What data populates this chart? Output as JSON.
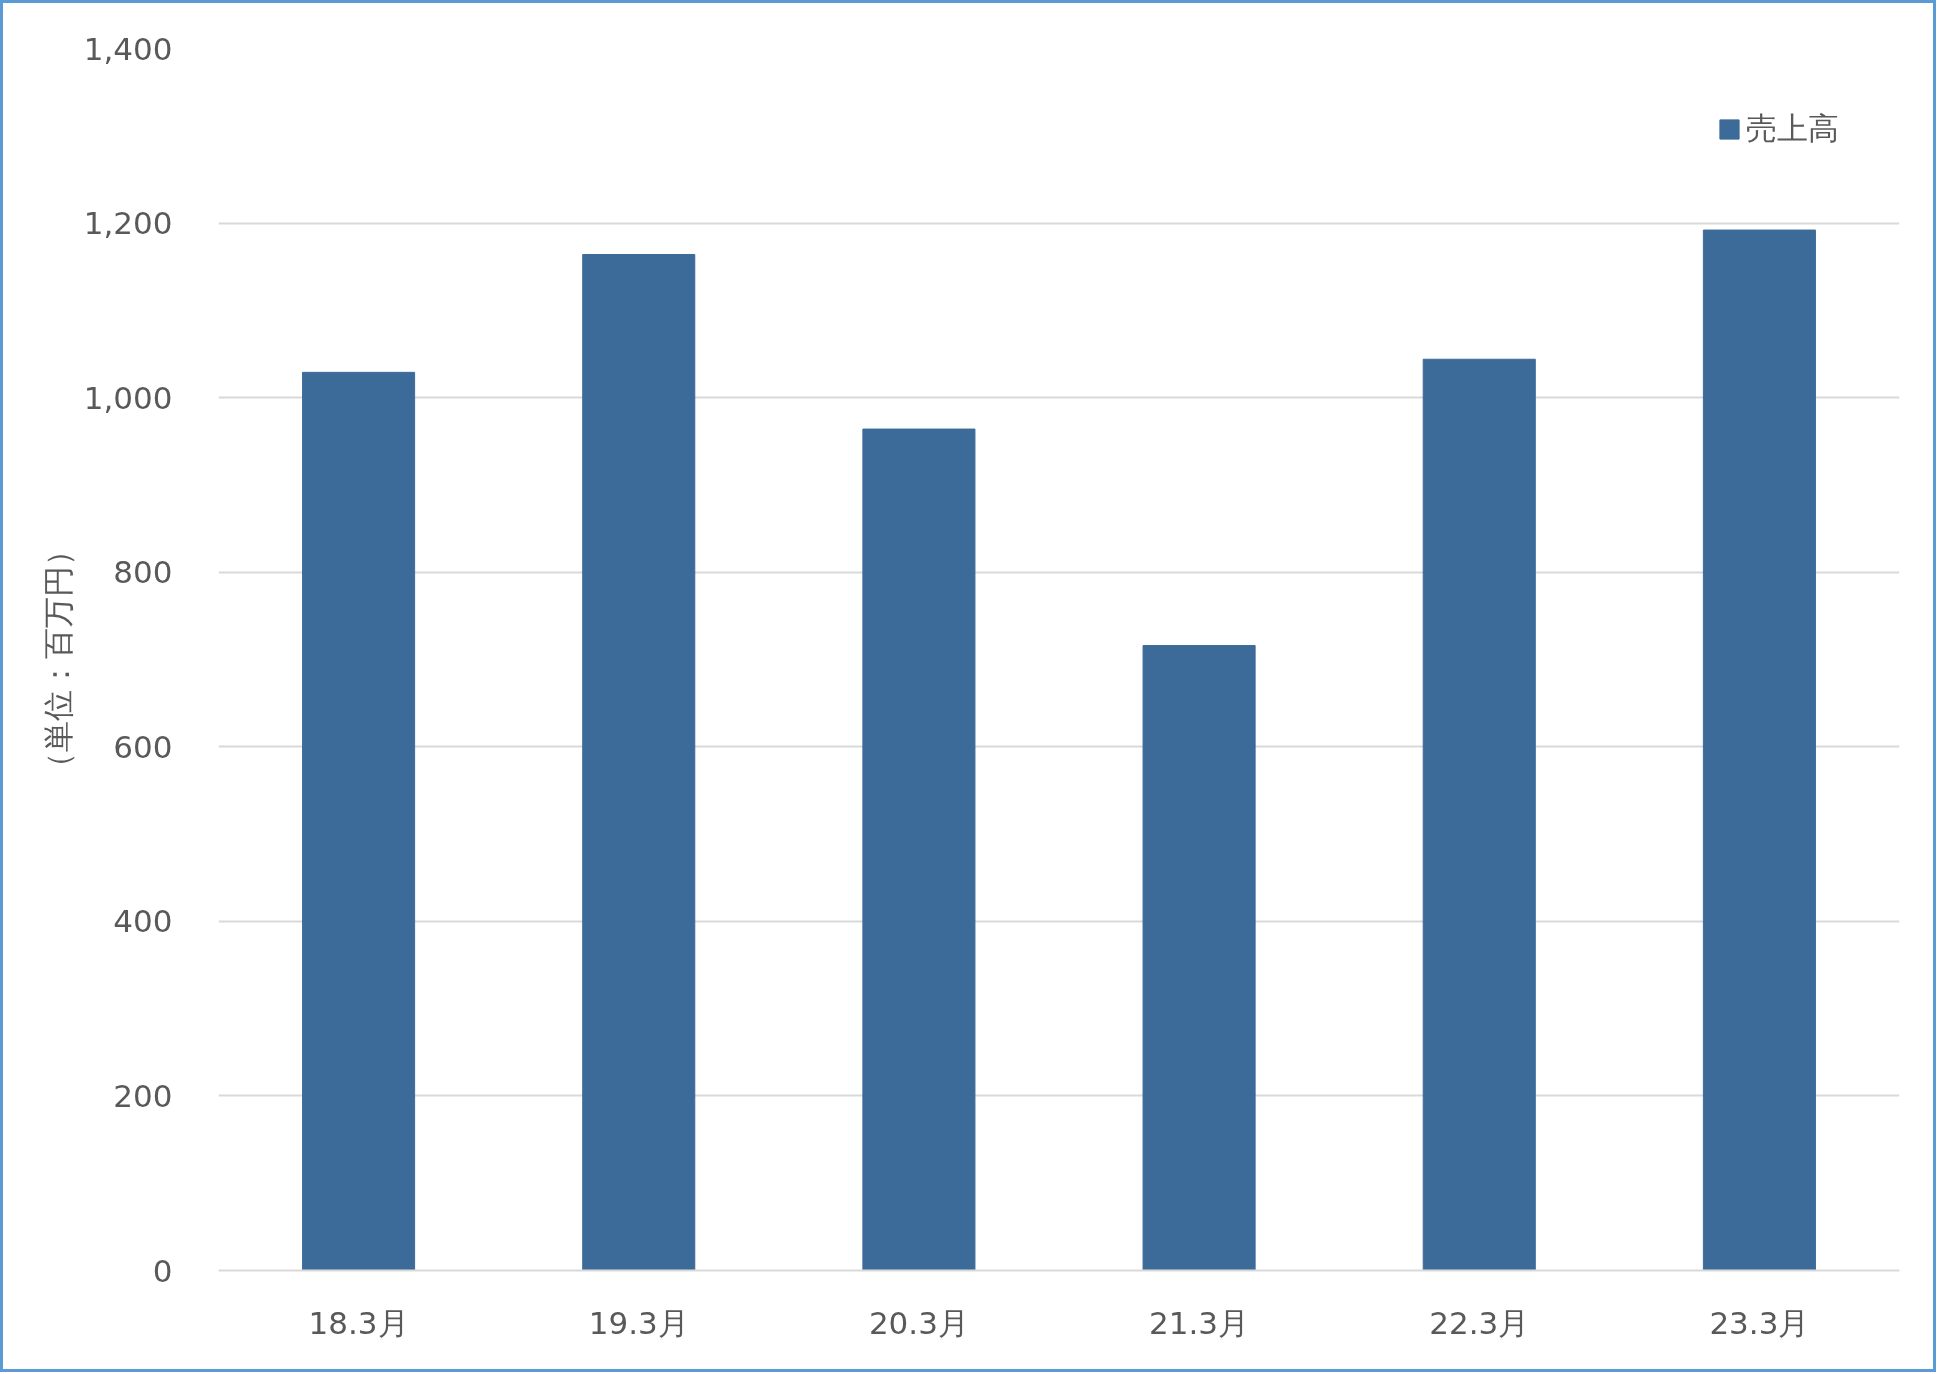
{
  "chart_data": {
    "type": "bar",
    "categories": [
      "18.3月",
      "19.3月",
      "20.3月",
      "21.3月",
      "22.3月",
      "23.3月"
    ],
    "series": [
      {
        "name": "売上高",
        "color": "#3d6b99",
        "values": [
          1029,
          1164,
          964,
          716,
          1044,
          1192
        ]
      }
    ],
    "ylabel": "（単位：百万円）",
    "ylim": [
      0,
      1400
    ],
    "yticks": [
      0,
      200,
      400,
      600,
      800,
      {
        "value": 1000,
        "label": "1,000"
      },
      {
        "value": 1200,
        "label": "1,200"
      },
      {
        "value": 1400,
        "label": "1,400"
      }
    ],
    "grid": "y",
    "legend": "top right"
  }
}
